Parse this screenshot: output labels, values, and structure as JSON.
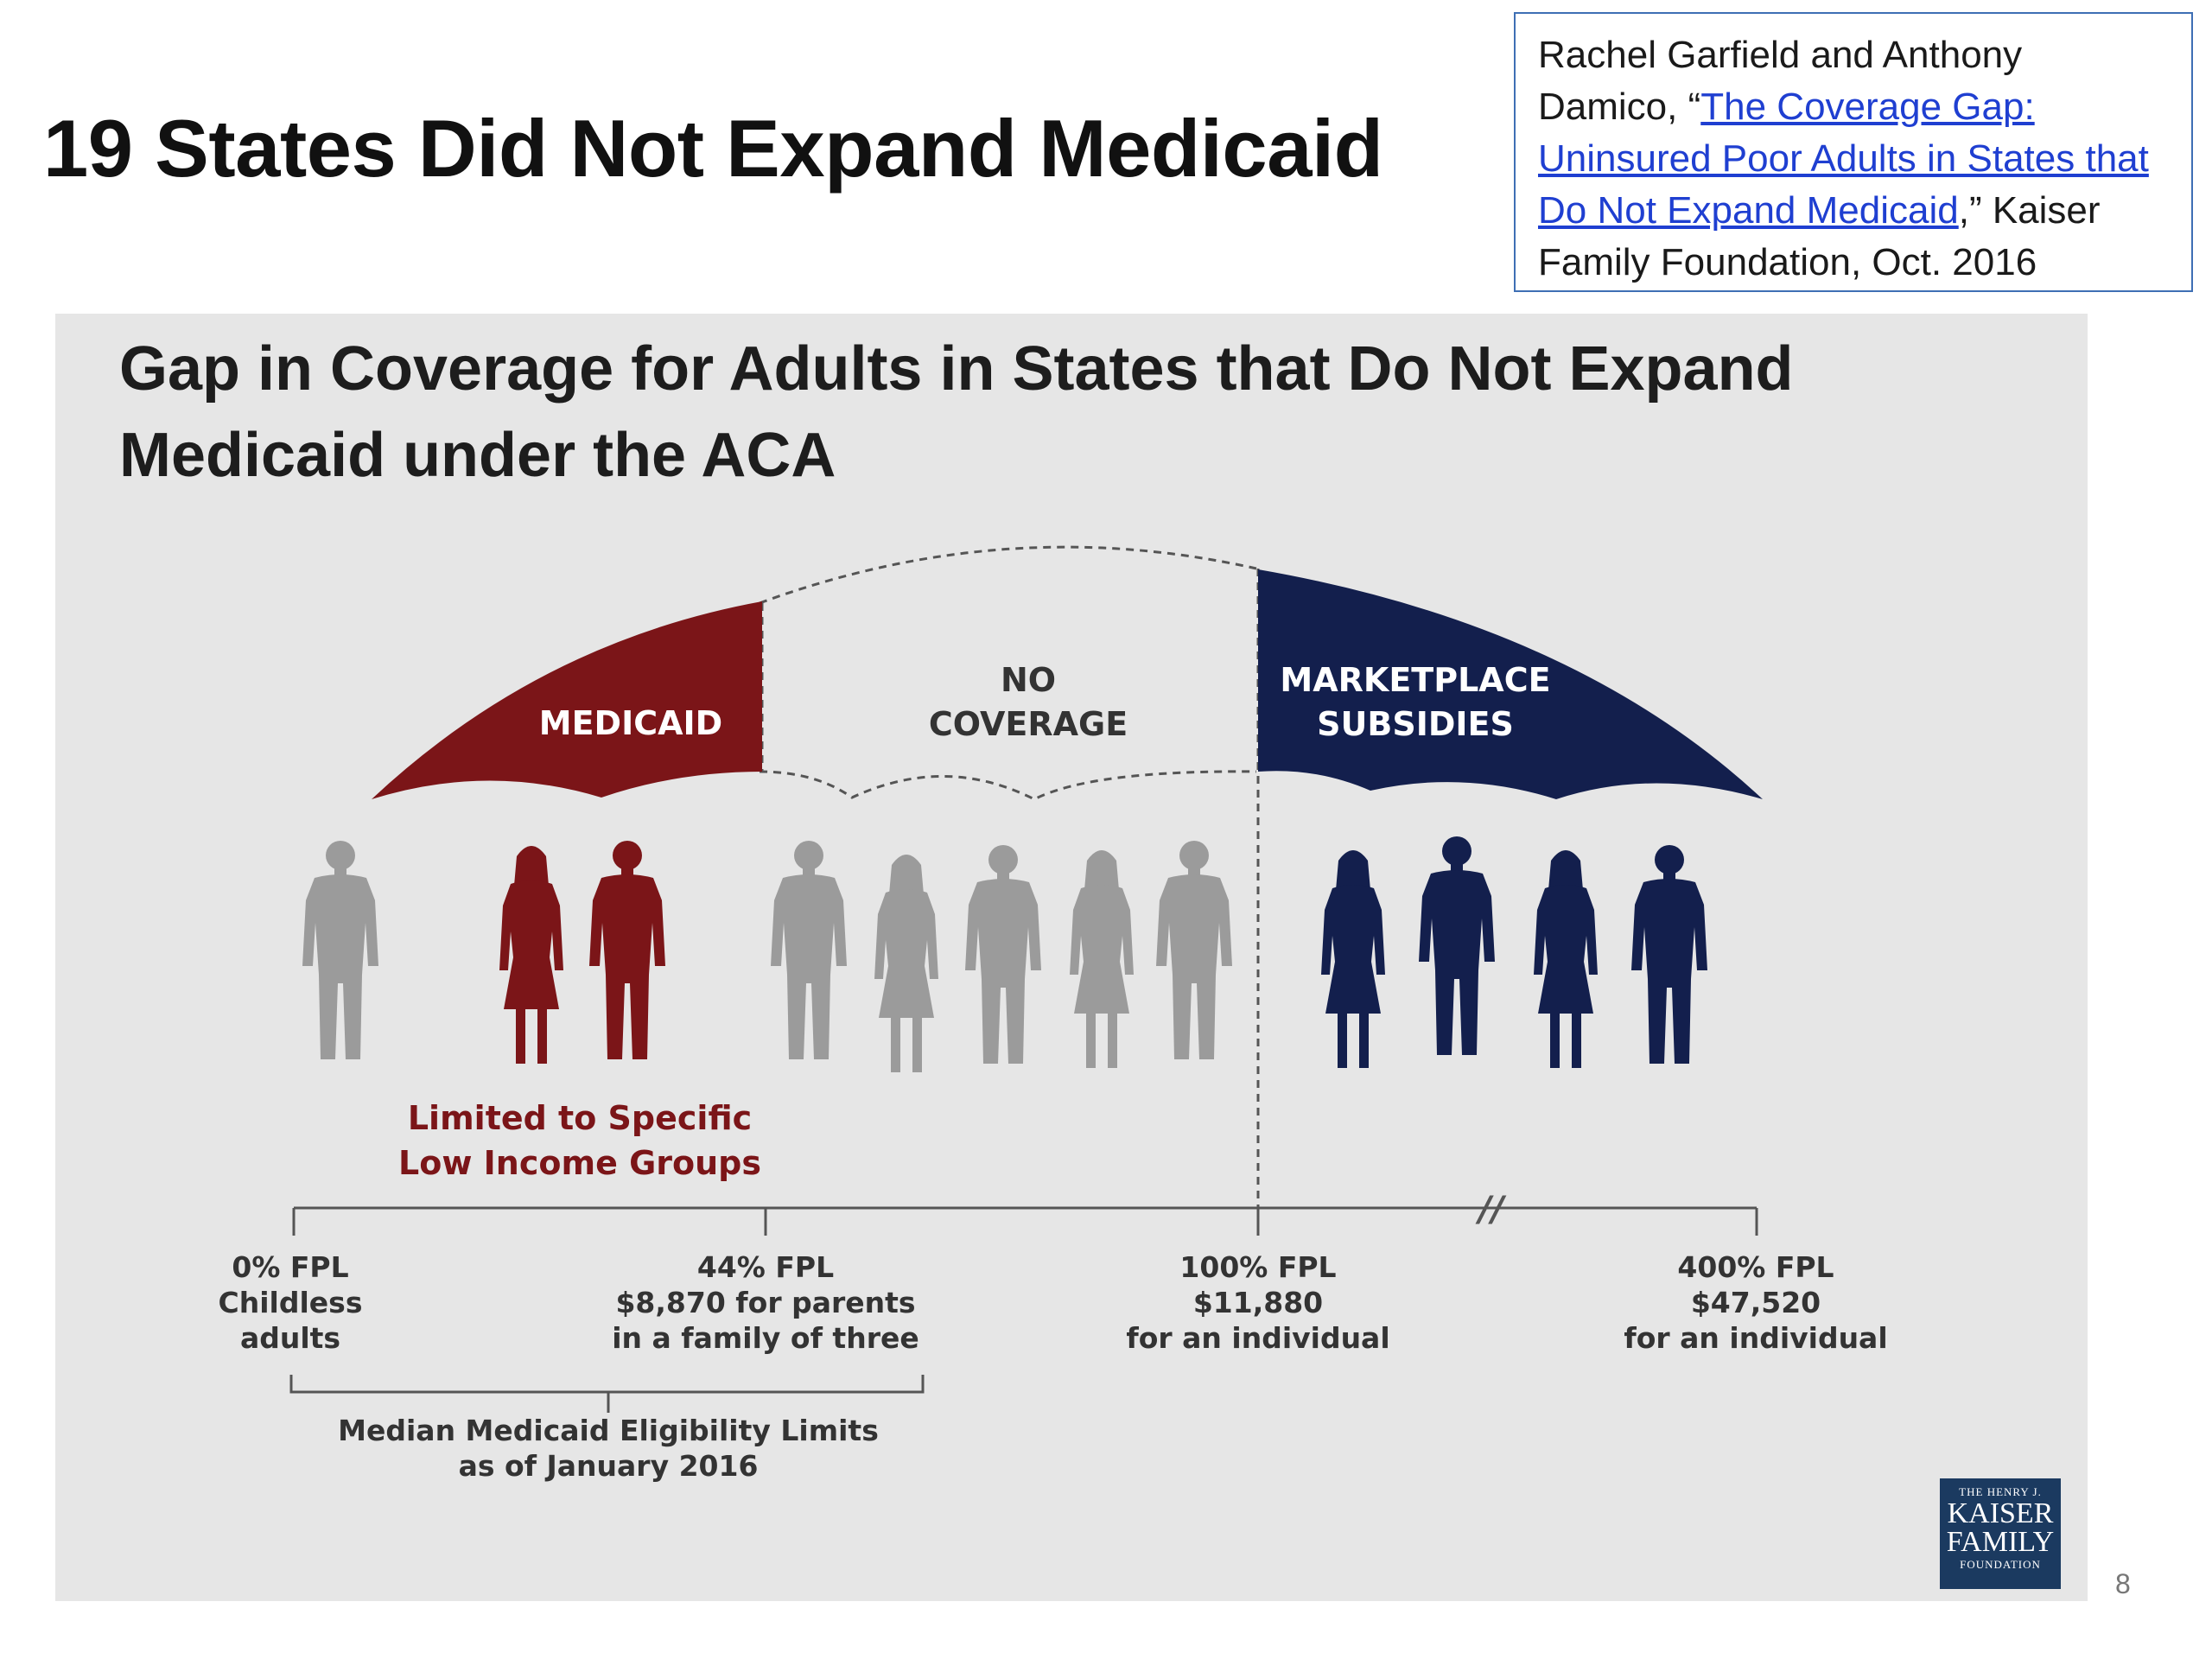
{
  "slide": {
    "title": "19 States Did Not Expand Medicaid",
    "page_number": "8"
  },
  "citation": {
    "text_before": "Rachel Garfield and Anthony Damico, “",
    "link_text": "The Coverage Gap: Uninsured Poor Adults in States that Do Not Expand Medicaid",
    "text_after": ",” Kaiser Family Foundation, Oct. 2016"
  },
  "panel": {
    "title_line1": "Gap in Coverage for Adults in States that Do Not Expand",
    "title_line2": "Medicaid under the ACA"
  },
  "umbrella": {
    "medicaid": "MEDICAID",
    "no_coverage_1": "NO",
    "no_coverage_2": "COVERAGE",
    "marketplace_1": "MARKETPLACE",
    "marketplace_2": "SUBSIDIES"
  },
  "groups": {
    "limited_1": "Limited to Specific",
    "limited_2": "Low Income Groups"
  },
  "axis": {
    "t0_line1": "0% FPL",
    "t0_line2": "Childless",
    "t0_line3": "adults",
    "t1_line1": "44% FPL",
    "t1_line2": "$8,870 for parents",
    "t1_line3": "in a family of three",
    "t2_line1": "100% FPL",
    "t2_line2": "$11,880",
    "t2_line3": "for an individual",
    "t3_line1": "400% FPL",
    "t3_line2": "$47,520",
    "t3_line3": "for an individual",
    "break_mark": "//",
    "median_1": "Median Medicaid Eligibility Limits",
    "median_2": "as of January 2016"
  },
  "logo": {
    "line1": "THE HENRY J.",
    "line2": "KAISER",
    "line3": "FAMILY",
    "line4": "FOUNDATION"
  },
  "colors": {
    "medicaid": "#7b1518",
    "marketplace": "#131f4d",
    "uncovered": "#9b9b9b",
    "panel_bg": "#e6e6e6",
    "link": "#1f3fd1"
  },
  "icons": {
    "people": "person-silhouette-icon"
  }
}
